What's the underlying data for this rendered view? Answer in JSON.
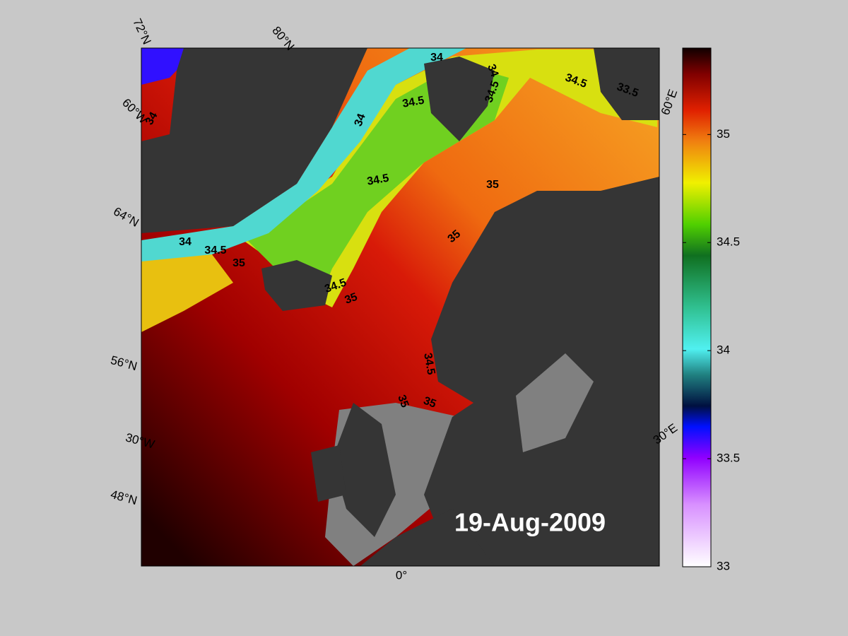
{
  "map": {
    "date": "19-Aug-2009",
    "graticule_labels": [
      "72°N",
      "80°N",
      "60°W",
      "64°N",
      "56°N",
      "30°W",
      "48°N",
      "0°",
      "60°E",
      "30°E"
    ],
    "contour_labels": [
      "34",
      "34",
      "34.5",
      "34.5",
      "33.5",
      "34.5",
      "34",
      "34",
      "34.5",
      "35",
      "35",
      "34",
      "34.5",
      "35",
      "34.5",
      "35",
      "34.5",
      "35",
      "35"
    ],
    "colorbar": {
      "limits": [
        33,
        35.4
      ],
      "ticks": [
        33,
        33.5,
        34,
        34.5,
        35
      ]
    }
  }
}
